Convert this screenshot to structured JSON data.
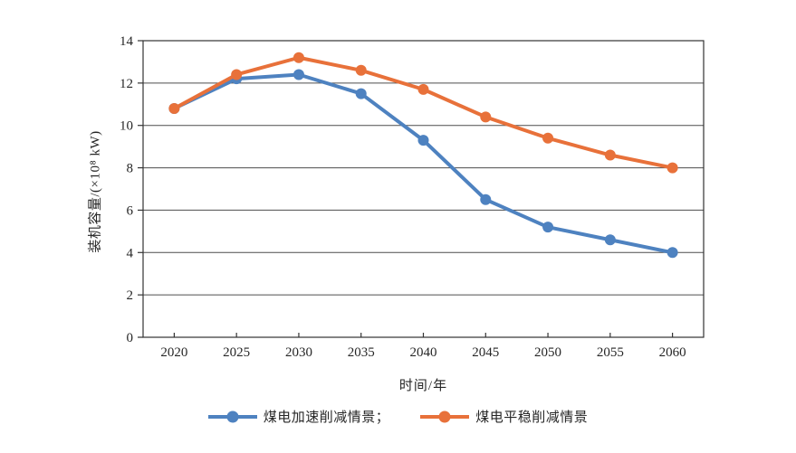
{
  "chart_data": {
    "type": "line",
    "categories": [
      "2020",
      "2025",
      "2030",
      "2035",
      "2040",
      "2045",
      "2050",
      "2055",
      "2060"
    ],
    "series": [
      {
        "name": "煤电加速削减情景；",
        "color": "#4E82C0",
        "values": [
          10.8,
          12.2,
          12.4,
          11.5,
          9.3,
          6.5,
          5.2,
          4.6,
          4.0
        ]
      },
      {
        "name": "煤电平稳削减情景",
        "color": "#E8713A",
        "values": [
          10.8,
          12.4,
          13.2,
          12.6,
          11.7,
          10.4,
          9.4,
          8.6,
          8.0
        ]
      }
    ],
    "title": "",
    "xlabel": "时间/年",
    "ylabel": "装机容量/(×10⁸ kW)",
    "ylim": [
      0,
      14
    ],
    "ytick_step": 2,
    "yticks": [
      "0",
      "2",
      "4",
      "6",
      "8",
      "10",
      "12",
      "14"
    ],
    "grid": "horizontal",
    "legend_position": "bottom",
    "axis_color": "#333333",
    "grid_color": "#4d4d4d"
  }
}
